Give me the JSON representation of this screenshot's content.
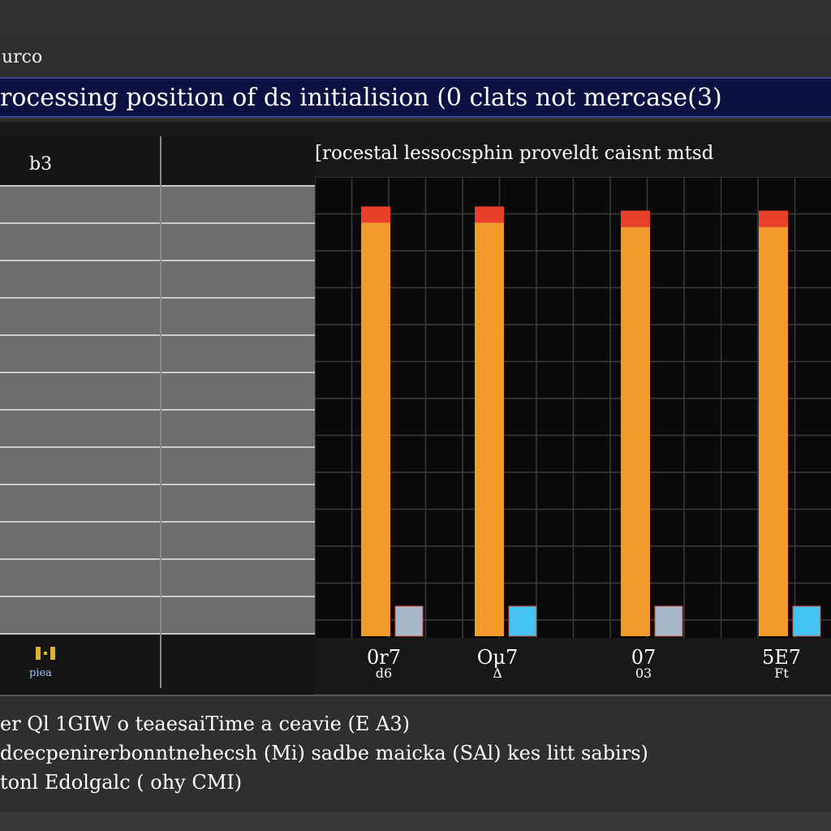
{
  "window": {
    "title": "urco"
  },
  "title_bar": {
    "text": "rocessing position of ds initialision (0 clats not mercase(3)"
  },
  "left_panel": {
    "header": "b3",
    "row_count": 12,
    "bottom_label": "piea"
  },
  "chart_data": {
    "type": "bar",
    "title": "[rocestal lessocsphin proveldt caisnt mtsd",
    "categories": [
      "0r7",
      "Oμ7",
      "07",
      "5E7"
    ],
    "category_sublabels": [
      "d6",
      "Δ",
      "03",
      "Ft"
    ],
    "series": [
      {
        "values": [
          100,
          100,
          99,
          99
        ]
      },
      {
        "values": [
          7,
          7,
          7,
          7
        ]
      }
    ],
    "ylim": [
      0,
      105
    ],
    "grid": true,
    "colors": {
      "primary": "#f39a2d",
      "primary_top": "#e8402a",
      "secondary_light": "#45c3f2",
      "secondary_grey": "#a9b8c8"
    }
  },
  "notes": [
    "er Ql 1GIW o teaesaiTime a ceavie (E A3)",
    "dcecpenirerbonntnehecsh (Mi) sadbe maicka (SAl) kes litt sabirs)",
    "tonl Edolgalc ( ohy CMI)"
  ]
}
